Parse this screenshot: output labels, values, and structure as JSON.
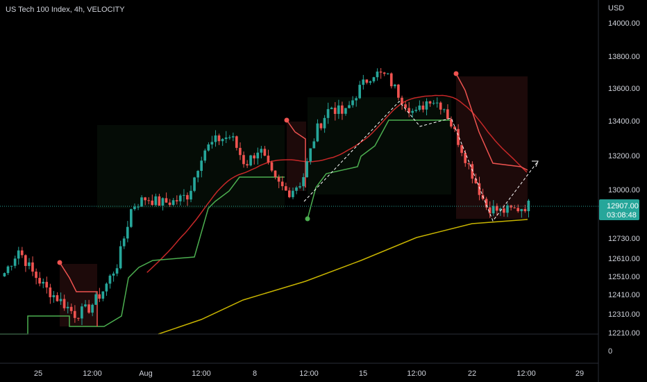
{
  "header": {
    "title": "US Tech 100 Index, 4h, VELOCITY"
  },
  "axis": {
    "currency": "USD",
    "lower_label": "0"
  },
  "price_badge": {
    "price": "12907.00",
    "countdown": "03:08:48"
  },
  "colors": {
    "background": "#000000",
    "up": "#26a69a",
    "down": "#ef5350",
    "supertrend_up": "#4caf50",
    "supertrend_down": "#ef5350",
    "ma_fast": "#c62828",
    "ma_slow": "#c8b400",
    "pattern": "#ffffff",
    "badge": "#26a69a",
    "text": "#d1d4dc"
  },
  "chart_data": {
    "type": "candlestick",
    "title": "US Tech 100 Index, 4h, VELOCITY",
    "ylabel": "USD",
    "y_ticks": [
      "14000.00",
      "13800.00",
      "13600.00",
      "13400.00",
      "13200.00",
      "13000.00",
      "12730.00",
      "12610.00",
      "12510.00",
      "12410.00",
      "12310.00",
      "12210.00"
    ],
    "x_ticks": [
      "25",
      "12:00",
      "Aug",
      "12:00",
      "8",
      "12:00",
      "15",
      "12:00",
      "22",
      "12:00",
      "29"
    ],
    "last_price": 12907.0,
    "candles_approx": {
      "start_close": 12500,
      "path": [
        12500,
        12640,
        12500,
        12400,
        12330,
        12250,
        12290,
        12400,
        12560,
        12900,
        12950,
        12920,
        12930,
        12970,
        13230,
        13300,
        13320,
        13150,
        13250,
        13060,
        12980,
        13050,
        13350,
        13500,
        13450,
        13600,
        13700,
        13680,
        13550,
        13450,
        13550,
        13500,
        13300,
        13100,
        12900,
        12870,
        12880,
        12907
      ]
    },
    "series": [
      {
        "name": "Supertrend",
        "type": "step-line"
      },
      {
        "name": "MA fast",
        "type": "line"
      },
      {
        "name": "MA slow",
        "type": "line"
      }
    ],
    "annotations": [
      "zigzag pattern (dashed)",
      "supertrend flip markers"
    ]
  }
}
